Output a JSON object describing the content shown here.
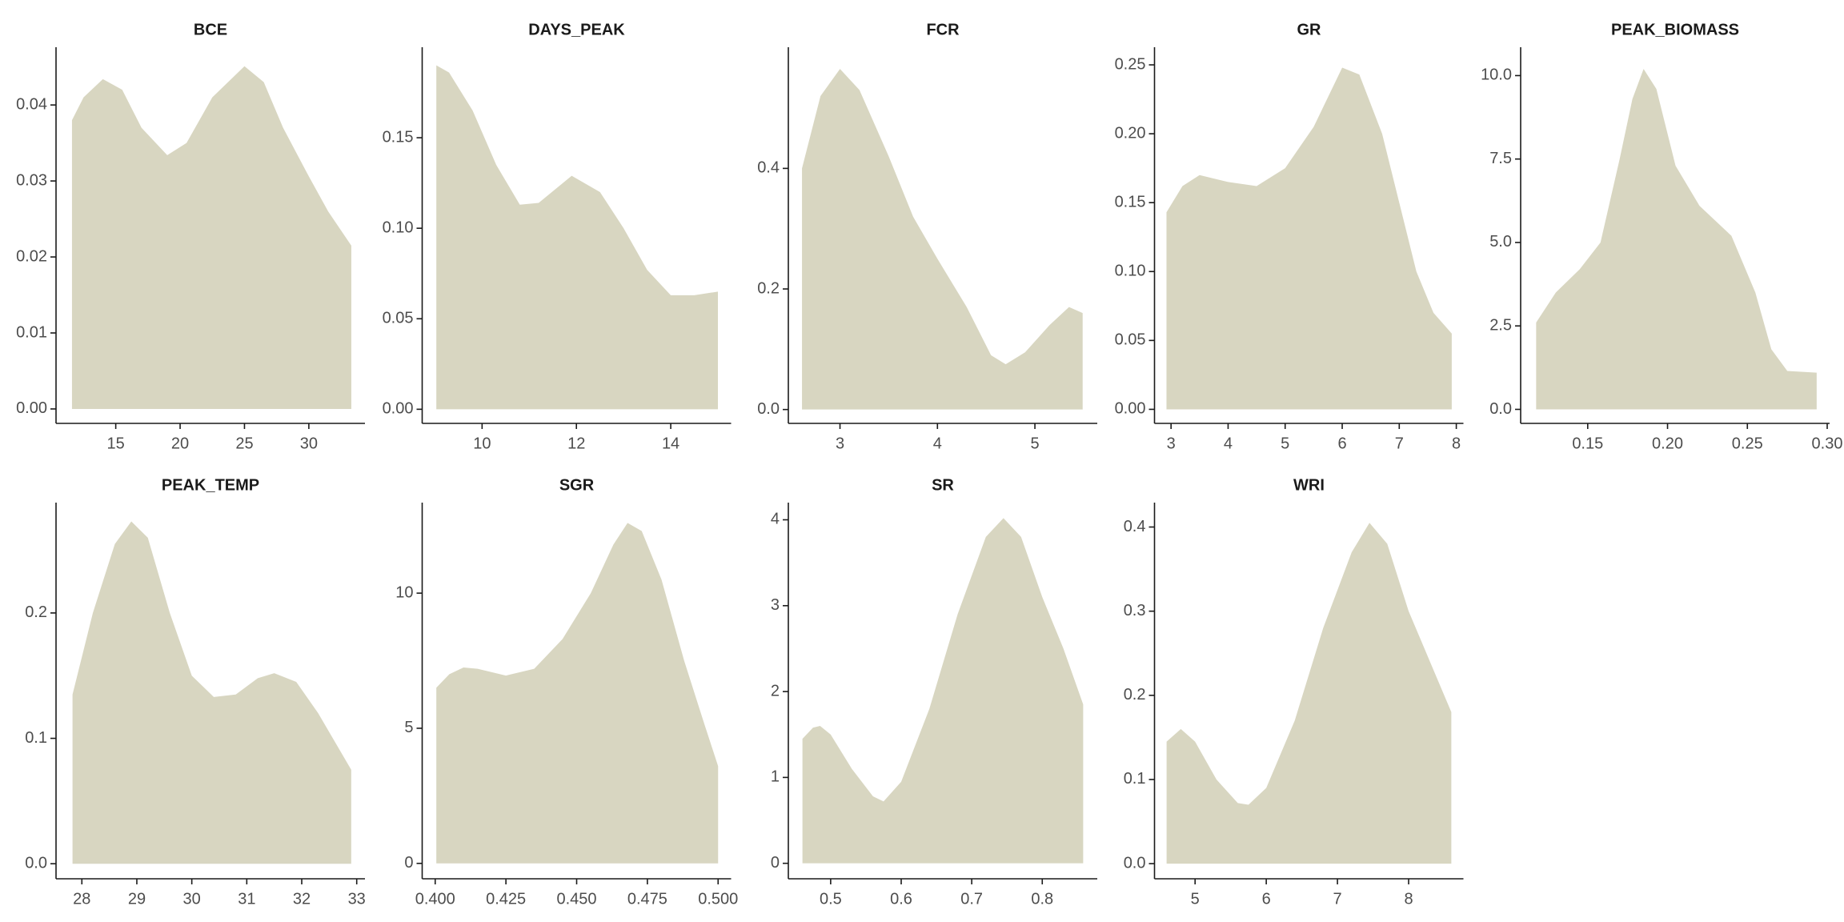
{
  "chart_data": [
    {
      "type": "area",
      "title": "BCE",
      "color": "#d8d6c1",
      "x": [
        11.6,
        12.5,
        14,
        15.5,
        17,
        19,
        20.5,
        22.5,
        25,
        26.5,
        28,
        30,
        31.5,
        33.3
      ],
      "values": [
        0.038,
        0.041,
        0.0434,
        0.042,
        0.037,
        0.0334,
        0.035,
        0.041,
        0.0451,
        0.043,
        0.037,
        0.0306,
        0.026,
        0.0215
      ],
      "xlim": [
        10.36,
        34.36
      ],
      "ylim": [
        -0.0019,
        0.0476
      ],
      "xticks": [
        15,
        20,
        25,
        30
      ],
      "yticks": [
        {
          "value": 0,
          "label": "0.00"
        },
        0.01,
        0.02,
        0.03,
        0.04
      ]
    },
    {
      "type": "area",
      "title": "DAYS_PEAK",
      "color": "#d8d6c1",
      "x": [
        9.03,
        9.3,
        9.8,
        10.3,
        10.8,
        11.2,
        11.9,
        12.5,
        13,
        13.5,
        14,
        14.5,
        15.0
      ],
      "values": [
        0.19,
        0.186,
        0.165,
        0.135,
        0.113,
        0.114,
        0.129,
        0.12,
        0.1,
        0.077,
        0.063,
        0.063,
        0.065
      ],
      "xlim": [
        8.73,
        15.28
      ],
      "ylim": [
        -0.0078,
        0.2
      ],
      "xticks": [
        10,
        12,
        14
      ],
      "yticks": [
        {
          "value": 0,
          "label": "0.00"
        },
        0.05,
        {
          "value": 0.1,
          "label": "0.10"
        },
        0.15
      ]
    },
    {
      "type": "area",
      "title": "FCR",
      "color": "#d8d6c1",
      "x": [
        2.61,
        2.8,
        3.0,
        3.2,
        3.5,
        3.75,
        4.0,
        4.3,
        4.55,
        4.7,
        4.9,
        5.15,
        5.35,
        5.49
      ],
      "values": [
        0.4,
        0.52,
        0.565,
        0.53,
        0.42,
        0.32,
        0.25,
        0.17,
        0.09,
        0.075,
        0.095,
        0.14,
        0.17,
        0.16
      ],
      "xlim": [
        2.47,
        5.64
      ],
      "ylim": [
        -0.023,
        0.601
      ],
      "xticks": [
        3,
        4,
        5
      ],
      "yticks": [
        {
          "value": 0,
          "label": "0.0"
        },
        0.2,
        0.4
      ]
    },
    {
      "type": "area",
      "title": "GR",
      "color": "#d8d6c1",
      "x": [
        2.92,
        3.2,
        3.5,
        4.0,
        4.5,
        5.0,
        5.5,
        6.0,
        6.3,
        6.7,
        7.0,
        7.3,
        7.6,
        7.92
      ],
      "values": [
        0.143,
        0.162,
        0.17,
        0.165,
        0.162,
        0.175,
        0.205,
        0.248,
        0.243,
        0.2,
        0.15,
        0.1,
        0.07,
        0.055
      ],
      "xlim": [
        2.71,
        8.125
      ],
      "ylim": [
        -0.0102,
        0.2628
      ],
      "xticks": [
        3,
        4,
        5,
        6,
        7,
        8
      ],
      "yticks": [
        {
          "value": 0,
          "label": "0.00"
        },
        0.05,
        {
          "value": 0.1,
          "label": "0.10"
        },
        0.15,
        {
          "value": 0.2,
          "label": "0.20"
        },
        0.25
      ]
    },
    {
      "type": "area",
      "title": "PEAK_BIOMASS",
      "color": "#d8d6c1",
      "x": [
        0.1177,
        0.13,
        0.145,
        0.158,
        0.17,
        0.178,
        0.185,
        0.193,
        0.205,
        0.22,
        0.24,
        0.255,
        0.265,
        0.275,
        0.2934
      ],
      "values": [
        2.6,
        3.5,
        4.2,
        5.0,
        7.5,
        9.3,
        10.2,
        9.6,
        7.3,
        6.1,
        5.2,
        3.5,
        1.8,
        1.15,
        1.1
      ],
      "xlim": [
        0.108,
        0.3015
      ],
      "ylim": [
        -0.42,
        10.85
      ],
      "xticks": [
        0.15,
        {
          "value": 0.2,
          "label": "0.20"
        },
        0.25,
        {
          "value": 0.3,
          "label": "0.30"
        }
      ],
      "yticks": [
        {
          "value": 0,
          "label": "0.0"
        },
        2.5,
        {
          "value": 5,
          "label": "5.0"
        },
        7.5,
        {
          "value": 10,
          "label": "10.0"
        }
      ]
    },
    {
      "type": "area",
      "title": "PEAK_TEMP",
      "color": "#d8d6c1",
      "x": [
        27.83,
        28.2,
        28.6,
        28.9,
        29.2,
        29.6,
        30.0,
        30.4,
        30.8,
        31.2,
        31.5,
        31.9,
        32.3,
        32.9
      ],
      "values": [
        0.135,
        0.2,
        0.255,
        0.273,
        0.26,
        0.2,
        0.15,
        0.133,
        0.135,
        0.148,
        0.152,
        0.145,
        0.12,
        0.075
      ],
      "xlim": [
        27.53,
        33.15
      ],
      "ylim": [
        -0.012,
        0.288
      ],
      "xticks": [
        28,
        29,
        30,
        31,
        32,
        33
      ],
      "yticks": [
        {
          "value": 0,
          "label": "0.0"
        },
        0.1,
        0.2
      ]
    },
    {
      "type": "area",
      "title": "SGR",
      "color": "#d8d6c1",
      "x": [
        0.4004,
        0.405,
        0.41,
        0.415,
        0.425,
        0.435,
        0.445,
        0.455,
        0.463,
        0.468,
        0.473,
        0.48,
        0.488,
        0.495,
        0.5
      ],
      "values": [
        6.5,
        7.0,
        7.25,
        7.2,
        6.95,
        7.2,
        8.3,
        10.0,
        11.8,
        12.6,
        12.3,
        10.5,
        7.5,
        5.2,
        3.6
      ],
      "xlim": [
        0.3954,
        0.5046
      ],
      "ylim": [
        -0.57,
        13.35
      ],
      "xticks": [
        {
          "value": 0.4,
          "label": "0.400"
        },
        0.425,
        {
          "value": 0.45,
          "label": "0.450"
        },
        0.475,
        {
          "value": 0.5,
          "label": "0.500"
        }
      ],
      "yticks": [
        0,
        5,
        10
      ]
    },
    {
      "type": "area",
      "title": "SR",
      "color": "#d8d6c1",
      "x": [
        0.46,
        0.475,
        0.485,
        0.5,
        0.53,
        0.56,
        0.575,
        0.6,
        0.64,
        0.68,
        0.72,
        0.745,
        0.77,
        0.8,
        0.83,
        0.858
      ],
      "values": [
        1.45,
        1.58,
        1.6,
        1.5,
        1.1,
        0.78,
        0.72,
        0.95,
        1.8,
        2.9,
        3.8,
        4.02,
        3.8,
        3.1,
        2.5,
        1.85
      ],
      "xlim": [
        0.44,
        0.878
      ],
      "ylim": [
        -0.18,
        4.2
      ],
      "xticks": [
        0.5,
        0.6,
        0.7,
        0.8
      ],
      "yticks": [
        0,
        1,
        2,
        3,
        4
      ]
    },
    {
      "type": "area",
      "title": "WRI",
      "color": "#d8d6c1",
      "x": [
        4.6,
        4.8,
        5.0,
        5.3,
        5.6,
        5.75,
        6.0,
        6.4,
        6.8,
        7.2,
        7.45,
        7.7,
        8.0,
        8.3,
        8.6
      ],
      "values": [
        0.145,
        0.16,
        0.145,
        0.1,
        0.072,
        0.07,
        0.09,
        0.17,
        0.28,
        0.37,
        0.405,
        0.38,
        0.3,
        0.24,
        0.18
      ],
      "xlim": [
        4.43,
        8.77
      ],
      "ylim": [
        -0.018,
        0.429
      ],
      "xticks": [
        5,
        6,
        7,
        8
      ],
      "yticks": [
        {
          "value": 0,
          "label": "0.0"
        },
        0.1,
        0.2,
        0.3,
        0.4
      ]
    }
  ]
}
